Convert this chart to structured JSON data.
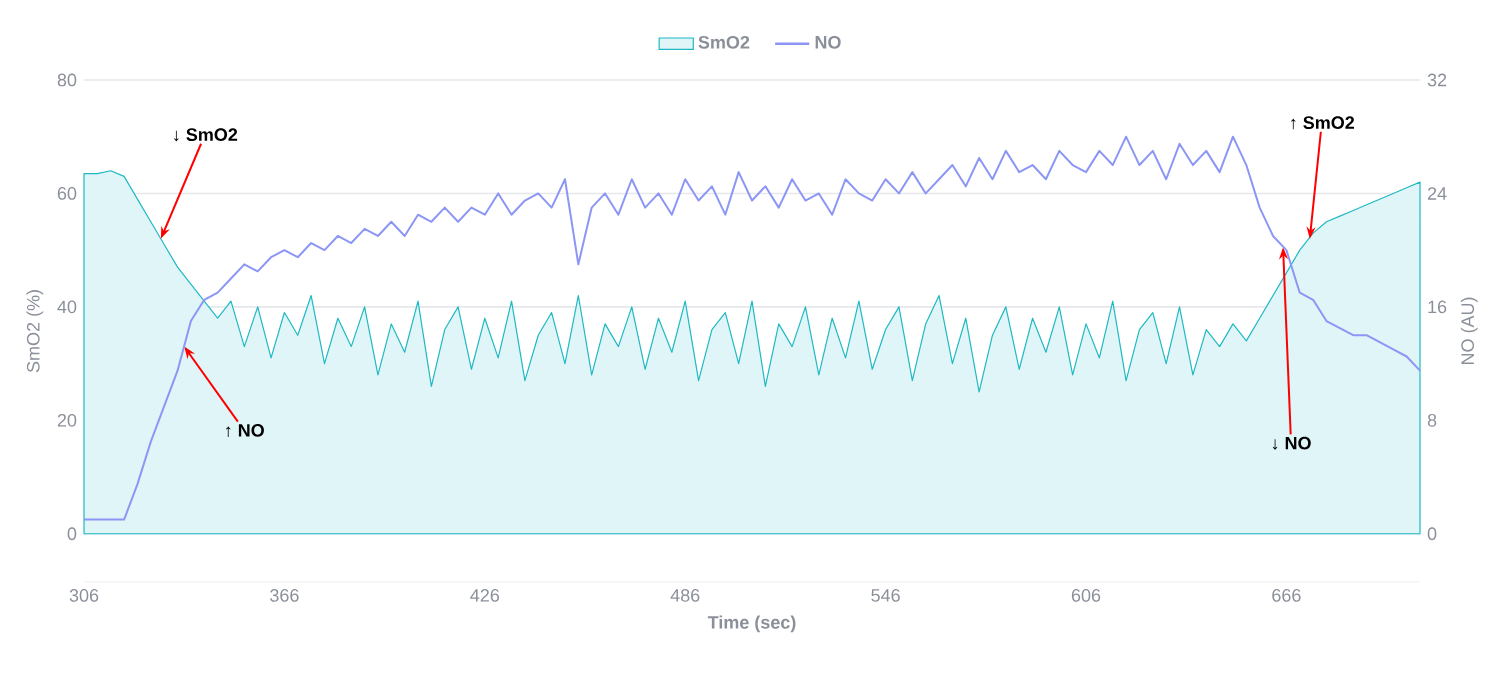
{
  "chart_data": {
    "type": "line",
    "xlabel": "Time (sec)",
    "ylabel": "SmO2 (%)",
    "y2label": "NO (AU)",
    "xlim": [
      306,
      706
    ],
    "xticks": [
      306,
      366,
      426,
      486,
      546,
      606,
      666
    ],
    "ylim": [
      -8.5,
      80
    ],
    "yticks": [
      0,
      20,
      40,
      60,
      80
    ],
    "y2lim": [
      -3.4,
      32
    ],
    "y2ticks": [
      0,
      8,
      16,
      24,
      32
    ],
    "grid": "y",
    "legend": "top",
    "x": [
      306,
      310,
      314,
      318,
      322,
      326,
      330,
      334,
      338,
      342,
      346,
      350,
      354,
      358,
      362,
      366,
      370,
      374,
      378,
      382,
      386,
      390,
      394,
      398,
      402,
      406,
      410,
      414,
      418,
      422,
      426,
      430,
      434,
      438,
      442,
      446,
      450,
      454,
      458,
      462,
      466,
      470,
      474,
      478,
      482,
      486,
      490,
      494,
      498,
      502,
      506,
      510,
      514,
      518,
      522,
      526,
      530,
      534,
      538,
      542,
      546,
      550,
      554,
      558,
      562,
      566,
      570,
      574,
      578,
      582,
      586,
      590,
      594,
      598,
      602,
      606,
      610,
      614,
      618,
      622,
      626,
      630,
      634,
      638,
      642,
      646,
      650,
      654,
      658,
      662,
      666,
      670,
      674,
      678,
      682,
      686,
      690,
      694,
      698,
      702,
      706
    ],
    "series": [
      {
        "name": "SmO2",
        "type": "area",
        "color": "#1fb9c3",
        "values": [
          63.5,
          63.5,
          64,
          63,
          59,
          55,
          51,
          47,
          44,
          41,
          38,
          41,
          33,
          40,
          31,
          39,
          35,
          42,
          30,
          38,
          33,
          40,
          28,
          37,
          32,
          41,
          26,
          36,
          40,
          29,
          38,
          31,
          41,
          27,
          35,
          39,
          30,
          42,
          28,
          37,
          33,
          40,
          29,
          38,
          32,
          41,
          27,
          36,
          39,
          30,
          41,
          26,
          37,
          33,
          40,
          28,
          38,
          31,
          41,
          29,
          36,
          40,
          27,
          37,
          42,
          30,
          38,
          25,
          35,
          40,
          29,
          38,
          32,
          40,
          28,
          37,
          31,
          41,
          27,
          36,
          39,
          30,
          40,
          28,
          36,
          33,
          37,
          34,
          38,
          42,
          46,
          50,
          53,
          55,
          56,
          57,
          58,
          59,
          60,
          61,
          62
        ]
      },
      {
        "name": "NO",
        "axis": "y2",
        "color": "#8c96f5",
        "values": [
          1,
          1,
          1,
          1,
          3.5,
          6.5,
          9,
          11.5,
          15,
          16.5,
          17,
          18,
          19,
          18.5,
          19.5,
          20,
          19.5,
          20.5,
          20,
          21,
          20.5,
          21.5,
          21,
          22,
          21,
          22.5,
          22,
          23,
          22,
          23,
          22.5,
          24,
          22.5,
          23.5,
          24,
          23,
          25,
          19,
          23,
          24,
          22.5,
          25,
          23,
          24,
          22.5,
          25,
          23.5,
          24.5,
          22.5,
          25.5,
          23.5,
          24.5,
          23,
          25,
          23.5,
          24,
          22.5,
          25,
          24,
          23.5,
          25,
          24,
          25.5,
          24,
          25,
          26,
          24.5,
          26.5,
          25,
          27,
          25.5,
          26,
          25,
          27,
          26,
          25.5,
          27,
          26,
          28,
          26,
          27,
          25,
          27.5,
          26,
          27,
          25.5,
          28,
          26,
          23,
          21,
          20,
          17,
          16.5,
          15,
          14.5,
          14,
          14,
          13.5,
          13,
          12.5,
          11.5
        ]
      }
    ],
    "annotations": [
      {
        "text": "↓ SmO2",
        "x": 329,
        "y": 52
      },
      {
        "text": "↑ NO",
        "x": 336,
        "y": 33
      },
      {
        "text": "↑ SmO2",
        "x": 673,
        "y": 52
      },
      {
        "text": "↓ NO",
        "x": 665,
        "y": 50.5
      }
    ]
  }
}
